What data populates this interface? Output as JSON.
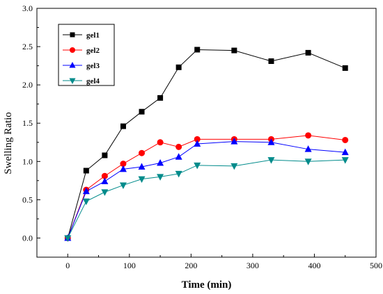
{
  "chart_data": {
    "type": "line",
    "xlabel": "Time (min)",
    "ylabel": "Swelling Ratio",
    "xlim": [
      -50,
      500
    ],
    "ylim": [
      -0.25,
      3.0
    ],
    "xticks": [
      0,
      100,
      200,
      300,
      400,
      500
    ],
    "yticks": [
      0.0,
      0.5,
      1.0,
      1.5,
      2.0,
      2.5,
      3.0
    ],
    "xtick_labels": [
      "0",
      "100",
      "200",
      "300",
      "400",
      "500"
    ],
    "ytick_labels": [
      "0.0",
      "0.5",
      "1.0",
      "1.5",
      "2.0",
      "2.5",
      "3.0"
    ],
    "legend_position": "top-left",
    "grid": false,
    "series": [
      {
        "name": "gel1",
        "color": "#000000",
        "marker": "square",
        "x": [
          0,
          30,
          60,
          90,
          120,
          150,
          180,
          210,
          270,
          330,
          390,
          450
        ],
        "y": [
          0.0,
          0.88,
          1.08,
          1.46,
          1.65,
          1.83,
          2.23,
          2.46,
          2.45,
          2.31,
          2.42,
          2.22
        ]
      },
      {
        "name": "gel2",
        "color": "#ff0000",
        "marker": "circle",
        "x": [
          0,
          30,
          60,
          90,
          120,
          150,
          180,
          210,
          270,
          330,
          390,
          450
        ],
        "y": [
          0.0,
          0.63,
          0.81,
          0.97,
          1.11,
          1.25,
          1.19,
          1.29,
          1.29,
          1.29,
          1.34,
          1.28
        ]
      },
      {
        "name": "gel3",
        "color": "#0000ff",
        "marker": "triangle-up",
        "x": [
          0,
          30,
          60,
          90,
          120,
          150,
          180,
          210,
          270,
          330,
          390,
          450
        ],
        "y": [
          0.0,
          0.61,
          0.74,
          0.9,
          0.93,
          0.98,
          1.06,
          1.23,
          1.26,
          1.25,
          1.16,
          1.12
        ]
      },
      {
        "name": "gel4",
        "color": "#008b8b",
        "marker": "triangle-down",
        "x": [
          0,
          30,
          60,
          90,
          120,
          150,
          180,
          210,
          270,
          330,
          390,
          450
        ],
        "y": [
          0.0,
          0.48,
          0.6,
          0.69,
          0.77,
          0.8,
          0.84,
          0.95,
          0.94,
          1.02,
          1.0,
          1.02
        ]
      }
    ]
  }
}
